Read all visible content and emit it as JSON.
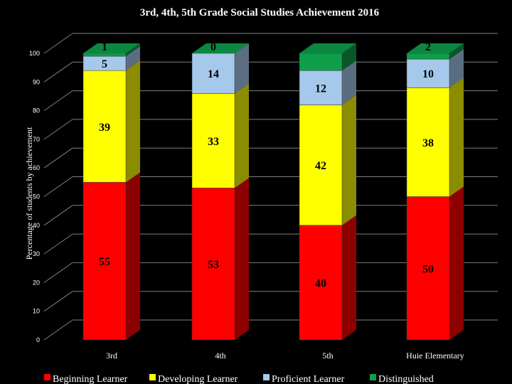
{
  "chart_data": {
    "type": "bar",
    "stacked": true,
    "title": "3rd, 4th, 5th Grade Social Studies Achievement 2016",
    "xlabel": "",
    "ylabel": "Percentage of students by achievement",
    "ylim": [
      0,
      100
    ],
    "yticks": [
      0,
      10,
      20,
      30,
      40,
      50,
      60,
      70,
      80,
      90,
      100
    ],
    "categories": [
      "3rd",
      "4th",
      "5th",
      "Huie Elementary"
    ],
    "series": [
      {
        "name": "Beginning Learner",
        "color": "#ff0000",
        "values": [
          55,
          53,
          40,
          50
        ]
      },
      {
        "name": "Developing Learner",
        "color": "#ffff00",
        "values": [
          39,
          33,
          42,
          38
        ]
      },
      {
        "name": "Proficient Learner",
        "color": "#a6c8ea",
        "values": [
          5,
          14,
          12,
          10
        ]
      },
      {
        "name": "Distinguished",
        "color": "#0e9f4b",
        "values": [
          1,
          0,
          6,
          2
        ]
      }
    ],
    "data_labels": [
      [
        "55",
        "53",
        "40",
        "50"
      ],
      [
        "39",
        "33",
        "42",
        "38"
      ],
      [
        "5",
        "14",
        "12",
        "10"
      ],
      [
        "1",
        "0",
        "",
        "2"
      ]
    ],
    "legend_position": "bottom"
  }
}
